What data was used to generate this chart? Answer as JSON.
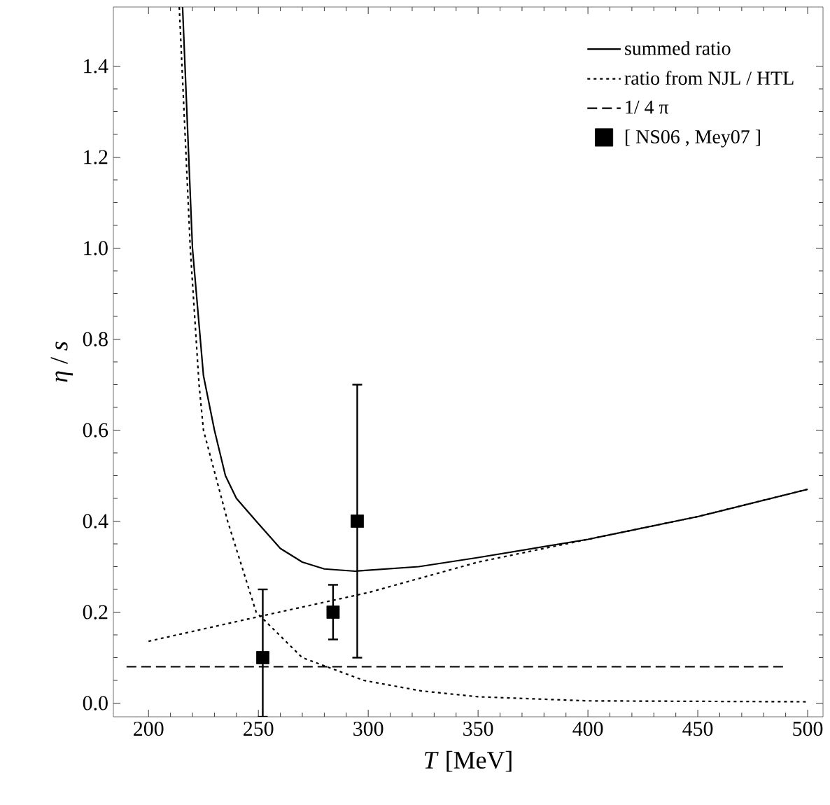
{
  "chart_data": {
    "type": "line",
    "xlabel": "*T* [MeV]",
    "ylabel": "*η* / *s*",
    "xlim": [
      184,
      507
    ],
    "ylim": [
      -0.03,
      1.53
    ],
    "xticks": [
      200,
      250,
      300,
      350,
      400,
      450,
      500
    ],
    "yticks": [
      {
        "value": 0,
        "label": "0.0"
      },
      {
        "value": 0.2,
        "label": "0.2"
      },
      {
        "value": 0.4,
        "label": "0.4"
      },
      {
        "value": 0.6,
        "label": "0.6"
      },
      {
        "value": 0.8,
        "label": "0.8"
      },
      {
        "value": 1.0,
        "label": "1.0"
      },
      {
        "value": 1.2,
        "label": "1.2"
      },
      {
        "value": 1.4,
        "label": "1.4"
      }
    ],
    "legend": "top right",
    "grid": false,
    "series": [
      {
        "name": "summed ratio",
        "line_style": "solid",
        "color": "#000000",
        "x": [
          215.5,
          220,
          225,
          230,
          235,
          240,
          249,
          260,
          270,
          280,
          294,
          323,
          350,
          400,
          450,
          500
        ],
        "values": [
          1.53,
          1.0,
          0.72,
          0.6,
          0.5,
          0.45,
          0.4,
          0.34,
          0.31,
          0.295,
          0.29,
          0.3,
          0.32,
          0.36,
          0.41,
          0.47
        ]
      },
      {
        "name": "ratio from NJL / HTL",
        "line_style": "dotted",
        "color": "#000000",
        "x": [
          214,
          219,
          223,
          225,
          236,
          249,
          270,
          298,
          324,
          350,
          400,
          450,
          500
        ],
        "values": [
          1.53,
          1.0,
          0.7,
          0.6,
          0.4,
          0.2,
          0.1,
          0.05,
          0.027,
          0.014,
          0.005,
          0.004,
          0.003
        ]
      },
      {
        "line_style": "dotted",
        "color": "#000000",
        "x": [
          200,
          250,
          300,
          350,
          400,
          450,
          500
        ],
        "values": [
          0.136,
          0.19,
          0.243,
          0.31,
          0.36,
          0.41,
          0.47
        ]
      },
      {
        "name": "1/ 4 π",
        "line_style": "dashed",
        "color": "#000000",
        "x": [
          190,
          490
        ],
        "values": [
          0.08,
          0.08
        ]
      },
      {
        "name": "[ NS06 ,  Mey07 ]",
        "type": "scatter",
        "marker": "square",
        "color": "#000000",
        "x": [
          252,
          284,
          295
        ],
        "values": [
          0.1,
          0.2,
          0.4
        ],
        "errors": [
          [
            -0.03,
            0.25
          ],
          [
            0.14,
            0.26
          ],
          [
            0.1,
            0.7
          ]
        ]
      }
    ]
  }
}
